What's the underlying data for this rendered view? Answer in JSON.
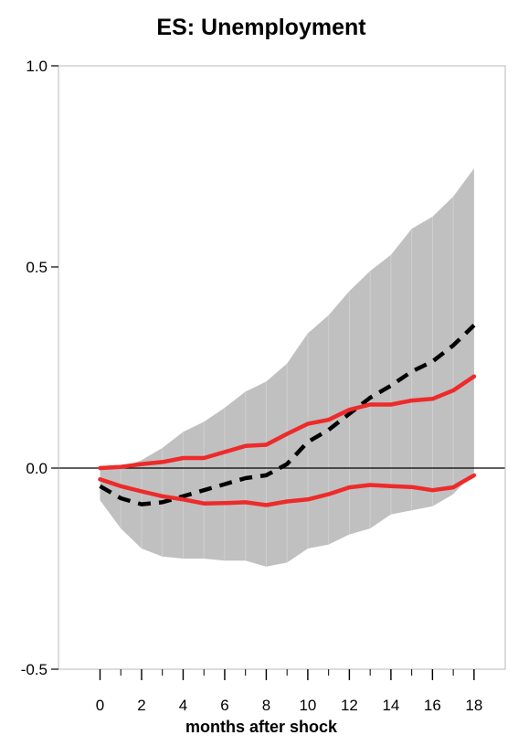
{
  "chart_data": {
    "type": "line",
    "title": "ES: Unemployment",
    "xlabel": "months after shock",
    "ylabel": "",
    "xlim": [
      -2,
      19.5
    ],
    "ylim": [
      -0.5,
      1.0
    ],
    "x_ticks": [
      0,
      2,
      4,
      6,
      8,
      10,
      12,
      14,
      16,
      18
    ],
    "x_tick_labels": [
      "0",
      "2",
      "4",
      "6",
      "8",
      "10",
      "12",
      "14",
      "16",
      "18"
    ],
    "y_ticks": [
      -0.5,
      0.0,
      0.5,
      1.0
    ],
    "y_tick_labels": [
      "-0.5",
      "0.0",
      "0.5",
      "1.0"
    ],
    "zero_line": true,
    "grid": false,
    "x": [
      0,
      1,
      2,
      3,
      4,
      5,
      6,
      7,
      8,
      9,
      10,
      11,
      12,
      13,
      14,
      15,
      16,
      17,
      18
    ],
    "band": {
      "lower": [
        -0.08,
        -0.15,
        -0.2,
        -0.22,
        -0.225,
        -0.225,
        -0.23,
        -0.23,
        -0.245,
        -0.235,
        -0.2,
        -0.19,
        -0.165,
        -0.15,
        -0.115,
        -0.105,
        -0.095,
        -0.065,
        -0.01
      ],
      "upper": [
        0.0,
        0.0,
        0.02,
        0.05,
        0.09,
        0.115,
        0.15,
        0.19,
        0.215,
        0.26,
        0.335,
        0.38,
        0.44,
        0.49,
        0.53,
        0.595,
        0.625,
        0.675,
        0.745
      ],
      "color": "#c0c0c0"
    },
    "series": [
      {
        "style": "dashed",
        "color": "#000000",
        "values": [
          -0.045,
          -0.075,
          -0.09,
          -0.085,
          -0.07,
          -0.055,
          -0.04,
          -0.025,
          -0.018,
          0.01,
          0.065,
          0.095,
          0.135,
          0.175,
          0.205,
          0.24,
          0.265,
          0.305,
          0.355
        ]
      },
      {
        "style": "solid",
        "color": "#ee2a2a",
        "values": [
          0.0,
          0.003,
          0.01,
          0.015,
          0.025,
          0.025,
          0.04,
          0.055,
          0.058,
          0.085,
          0.11,
          0.12,
          0.145,
          0.158,
          0.158,
          0.168,
          0.172,
          0.193,
          0.228
        ]
      },
      {
        "style": "solid",
        "color": "#ee2a2a",
        "values": [
          -0.028,
          -0.045,
          -0.058,
          -0.07,
          -0.078,
          -0.088,
          -0.087,
          -0.085,
          -0.092,
          -0.083,
          -0.078,
          -0.065,
          -0.048,
          -0.042,
          -0.045,
          -0.047,
          -0.055,
          -0.048,
          -0.018
        ]
      }
    ]
  }
}
